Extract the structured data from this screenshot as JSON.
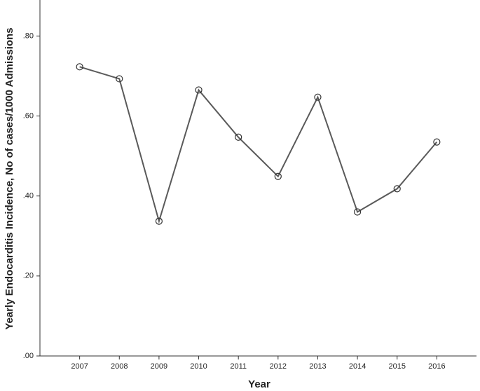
{
  "chart_data": {
    "type": "line",
    "x_label": "Year",
    "y_label": "Yearly Endocarditis Incidence, No of cases/1000 Admissions",
    "categories": [
      "2007",
      "2008",
      "2009",
      "2010",
      "2011",
      "2012",
      "2013",
      "2014",
      "2015",
      "2016"
    ],
    "series": [
      {
        "color": "#5a5a5a",
        "values": [
          0.723,
          0.693,
          0.337,
          0.665,
          0.547,
          0.449,
          0.647,
          0.36,
          0.418,
          0.535
        ]
      }
    ],
    "ylim": [
      0,
      0.89
    ],
    "yticks": [
      {
        "value": 0,
        "label": ".00"
      },
      {
        "value": 0.2,
        "label": ".20"
      },
      {
        "value": 0.4,
        "label": ".40"
      },
      {
        "value": 0.6,
        "label": ".60"
      },
      {
        "value": 0.8,
        "label": ".80"
      }
    ],
    "grid": false
  }
}
